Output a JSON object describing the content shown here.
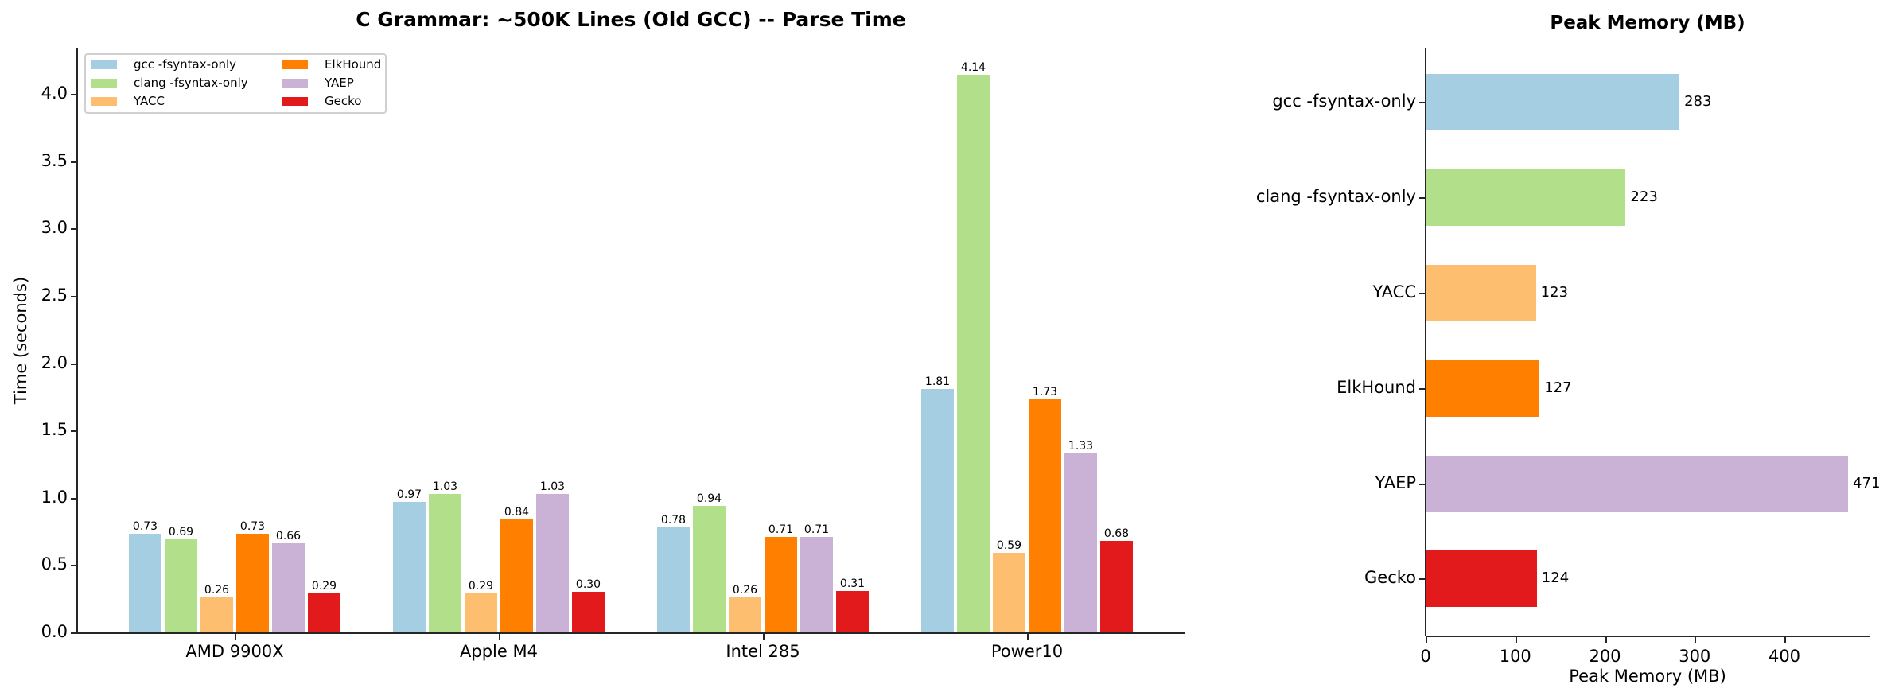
{
  "colors": {
    "gcc": "#a6cee3",
    "clang": "#b2df8a",
    "yacc": "#fdbf6f",
    "elkhound": "#ff7f00",
    "yaep": "#cab2d6",
    "gecko": "#e31a1c",
    "axis": "#262626"
  },
  "chart_data": [
    {
      "type": "bar",
      "title": "C Grammar: ~500K Lines (Old GCC) -- Parse Time",
      "xlabel": "",
      "ylabel": "Time (seconds)",
      "categories": [
        "AMD 9900X",
        "Apple M4",
        "Intel 285",
        "Power10"
      ],
      "series": [
        {
          "name": "gcc -fsyntax-only",
          "values": [
            0.73,
            0.97,
            0.78,
            1.81
          ]
        },
        {
          "name": "clang -fsyntax-only",
          "values": [
            0.69,
            1.03,
            0.94,
            4.14
          ]
        },
        {
          "name": "YACC",
          "values": [
            0.26,
            0.29,
            0.26,
            0.59
          ]
        },
        {
          "name": "ElkHound",
          "values": [
            0.73,
            0.84,
            0.71,
            1.73
          ]
        },
        {
          "name": "YAEP",
          "values": [
            0.66,
            1.03,
            0.71,
            1.33
          ]
        },
        {
          "name": "Gecko",
          "values": [
            0.29,
            0.3,
            0.31,
            0.68
          ]
        }
      ],
      "ylim": [
        0,
        4.34
      ],
      "yticks": [
        "0.0",
        "0.5",
        "1.0",
        "1.5",
        "2.0",
        "2.5",
        "3.0",
        "3.5",
        "4.0"
      ],
      "grid": false,
      "legend_position": "upper left",
      "legend_columns": 2
    },
    {
      "type": "bar",
      "orientation": "horizontal",
      "title": "Peak Memory (MB)",
      "xlabel": "Peak Memory (MB)",
      "ylabel": "",
      "categories": [
        "gcc -fsyntax-only",
        "clang -fsyntax-only",
        "YACC",
        "ElkHound",
        "YAEP",
        "Gecko"
      ],
      "values": [
        283,
        223,
        123,
        127,
        471,
        124
      ],
      "xlim": [
        0,
        495
      ],
      "xticks": [
        "0",
        "100",
        "200",
        "300",
        "400"
      ],
      "grid": false
    }
  ],
  "left_chart": {
    "title": "C Grammar: ~500K Lines (Old GCC) -- Parse Time",
    "ylabel": "Time (seconds)",
    "yticks": [
      "0.0",
      "0.5",
      "1.0",
      "1.5",
      "2.0",
      "2.5",
      "3.0",
      "3.5",
      "4.0"
    ],
    "groups": [
      "AMD 9900X",
      "Apple M4",
      "Intel 285",
      "Power10"
    ],
    "legend": [
      "gcc -fsyntax-only",
      "clang -fsyntax-only",
      "YACC",
      "ElkHound",
      "YAEP",
      "Gecko"
    ]
  },
  "right_chart": {
    "title": "Peak Memory (MB)",
    "xlabel": "Peak Memory (MB)",
    "xticks": [
      "0",
      "100",
      "200",
      "300",
      "400"
    ]
  }
}
